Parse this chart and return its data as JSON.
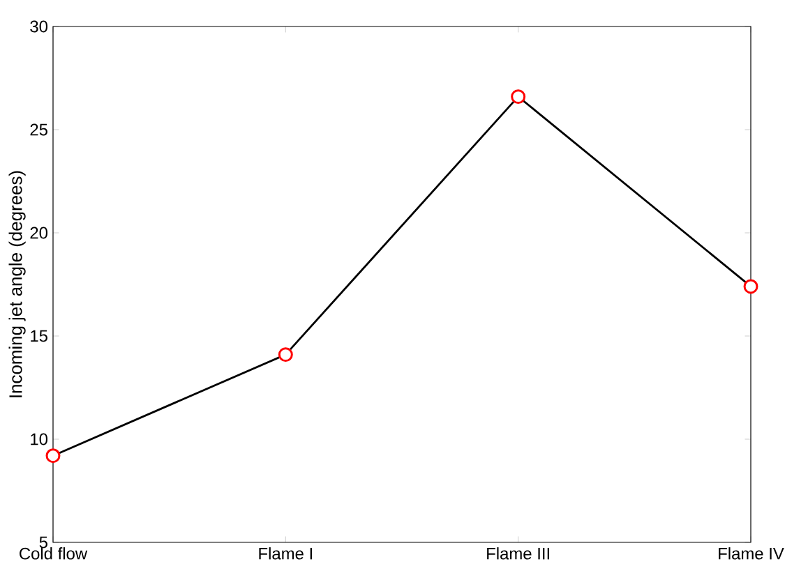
{
  "chart_data": {
    "type": "line",
    "ylabel": "Incoming jet angle (degrees)",
    "categories": [
      "Cold flow",
      "Flame I",
      "Flame III",
      "Flame IV"
    ],
    "series": [
      {
        "color": "#000000",
        "colors": [
          "#ff0000",
          "#ff0000",
          "#ff0000",
          "#ff0000"
        ],
        "values": [
          9.2,
          14.1,
          26.6,
          17.4
        ]
      }
    ],
    "ylim": [
      5,
      30
    ],
    "yticks": [
      5,
      10,
      15,
      20,
      25,
      30
    ],
    "marker": "circle",
    "line_style": "solid"
  }
}
